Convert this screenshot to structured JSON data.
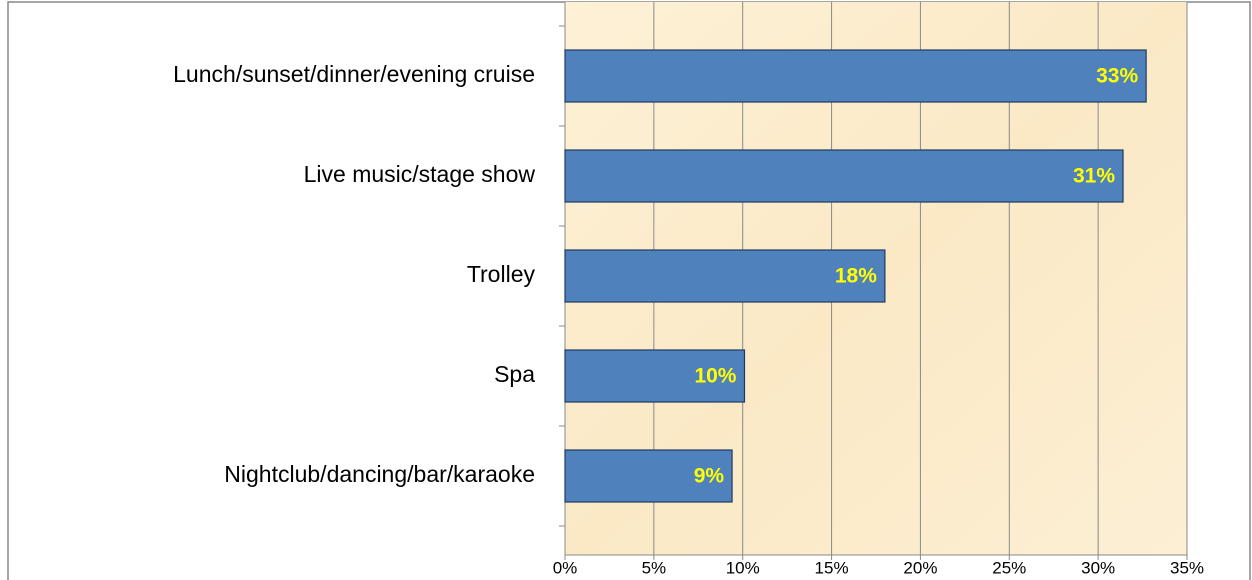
{
  "chart_data": {
    "type": "bar",
    "orientation": "horizontal",
    "categories": [
      "Lunch/sunset/dinner/evening cruise",
      "Live music/stage show",
      "Trolley",
      "Spa",
      "Nightclub/dancing/bar/karaoke"
    ],
    "values": [
      32.7,
      31.4,
      18,
      10.1,
      9.4
    ],
    "value_labels": [
      "33%",
      "31%",
      "18%",
      "10%",
      "9%"
    ],
    "color": "#4f81bd",
    "xlim": [
      0,
      35
    ],
    "xticks": [
      {
        "value": 0,
        "label": "0%"
      },
      {
        "value": 5,
        "label": "5%"
      },
      {
        "value": 10,
        "label": "10%"
      },
      {
        "value": 15,
        "label": "15%"
      },
      {
        "value": 20,
        "label": "20%"
      },
      {
        "value": 25,
        "label": "25%"
      },
      {
        "value": 30,
        "label": "30%"
      },
      {
        "value": 35,
        "label": "35%"
      }
    ],
    "grid": true
  }
}
